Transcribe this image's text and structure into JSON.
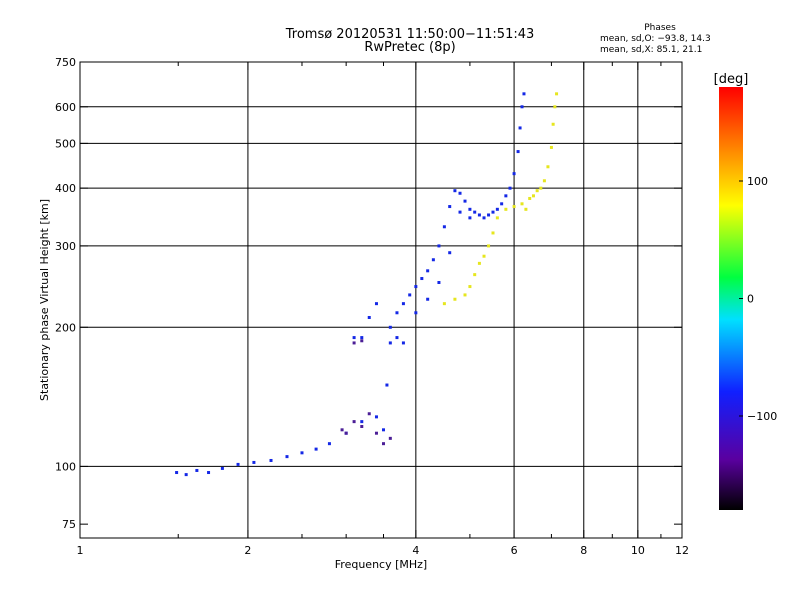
{
  "header": {
    "title": "Tromsø 20120531 11:50:00−11:51:43",
    "subtitle": "RwPretec (8p)"
  },
  "phases_box": {
    "title": "Phases",
    "line1": "mean, sd,O: −93.8, 14.3",
    "line2": "mean, sd,X:  85.1, 21.1"
  },
  "chart_data": {
    "type": "scatter",
    "xlabel": "Frequency [MHz]",
    "ylabel": "Stationary phase Virtual Height [km]",
    "xscale": "log",
    "yscale": "log",
    "xlim": [
      1,
      12
    ],
    "ylim": [
      70,
      750
    ],
    "x_ticks": [
      1,
      2,
      4,
      6,
      8,
      10,
      12
    ],
    "x_tick_labels": [
      "1",
      "2",
      "4",
      "6",
      "8",
      "10",
      "12"
    ],
    "x_minor_ticks": [
      1.5,
      2.5,
      3,
      3.5,
      5,
      7,
      9,
      11
    ],
    "y_ticks": [
      75,
      100,
      200,
      300,
      400,
      500,
      600,
      750
    ],
    "y_tick_labels": [
      "75",
      "100",
      "200",
      "300",
      "400",
      "500",
      "600",
      "750"
    ],
    "x_grid": [
      2,
      4,
      6,
      8,
      10,
      12
    ],
    "y_grid": [
      100,
      200,
      300,
      400,
      500,
      600
    ],
    "grid": true,
    "colorbar": {
      "label": "[deg]",
      "range": [
        -180,
        180
      ],
      "ticks": [
        -100,
        0,
        100
      ],
      "tick_labels": [
        "−100",
        "0",
        "100"
      ]
    },
    "series": [
      {
        "mode": "O",
        "color_hint": "blue",
        "points": [
          [
            1.49,
            97
          ],
          [
            1.55,
            96
          ],
          [
            1.62,
            98
          ],
          [
            1.7,
            97
          ],
          [
            1.8,
            99
          ],
          [
            1.92,
            101
          ],
          [
            2.05,
            102
          ],
          [
            2.2,
            103
          ],
          [
            2.35,
            105
          ],
          [
            2.5,
            107
          ],
          [
            2.65,
            109
          ],
          [
            2.8,
            112
          ],
          [
            3.0,
            118
          ],
          [
            3.2,
            125
          ],
          [
            3.4,
            128
          ],
          [
            3.5,
            120
          ],
          [
            3.55,
            150
          ],
          [
            3.6,
            200
          ],
          [
            3.7,
            215
          ],
          [
            3.8,
            225
          ],
          [
            3.9,
            235
          ],
          [
            4.0,
            245
          ],
          [
            4.1,
            255
          ],
          [
            4.2,
            265
          ],
          [
            4.3,
            280
          ],
          [
            4.4,
            300
          ],
          [
            4.5,
            330
          ],
          [
            4.6,
            365
          ],
          [
            4.7,
            395
          ],
          [
            4.8,
            390
          ],
          [
            4.9,
            375
          ],
          [
            5.0,
            360
          ],
          [
            5.1,
            355
          ],
          [
            5.2,
            350
          ],
          [
            5.3,
            345
          ],
          [
            5.4,
            350
          ],
          [
            5.5,
            355
          ],
          [
            5.6,
            360
          ],
          [
            5.7,
            370
          ],
          [
            5.8,
            385
          ],
          [
            5.9,
            400
          ],
          [
            6.0,
            430
          ],
          [
            6.1,
            480
          ],
          [
            6.15,
            540
          ],
          [
            6.2,
            600
          ],
          [
            6.25,
            640
          ],
          [
            3.1,
            190
          ],
          [
            3.2,
            190
          ],
          [
            3.3,
            210
          ],
          [
            3.4,
            225
          ],
          [
            3.6,
            185
          ],
          [
            3.7,
            190
          ],
          [
            3.8,
            185
          ],
          [
            4.0,
            215
          ],
          [
            4.2,
            230
          ],
          [
            4.4,
            250
          ],
          [
            4.6,
            290
          ],
          [
            4.8,
            355
          ],
          [
            5.0,
            345
          ]
        ]
      },
      {
        "mode": "X",
        "color_hint": "yellow",
        "points": [
          [
            4.5,
            225
          ],
          [
            4.7,
            230
          ],
          [
            4.9,
            235
          ],
          [
            5.0,
            245
          ],
          [
            5.1,
            260
          ],
          [
            5.2,
            275
          ],
          [
            5.3,
            285
          ],
          [
            5.4,
            300
          ],
          [
            5.5,
            320
          ],
          [
            5.6,
            345
          ],
          [
            5.8,
            360
          ],
          [
            6.0,
            365
          ],
          [
            6.2,
            370
          ],
          [
            6.4,
            380
          ],
          [
            6.6,
            395
          ],
          [
            6.8,
            415
          ],
          [
            6.9,
            445
          ],
          [
            7.0,
            490
          ],
          [
            7.05,
            550
          ],
          [
            7.1,
            600
          ],
          [
            7.15,
            640
          ],
          [
            6.3,
            360
          ],
          [
            6.5,
            385
          ],
          [
            6.7,
            400
          ]
        ]
      },
      {
        "mode": "O",
        "color_hint": "purple",
        "points": [
          [
            2.95,
            120
          ],
          [
            3.0,
            118
          ],
          [
            3.1,
            125
          ],
          [
            3.2,
            122
          ],
          [
            3.3,
            130
          ],
          [
            3.4,
            118
          ],
          [
            3.5,
            112
          ],
          [
            3.6,
            115
          ],
          [
            3.1,
            185
          ],
          [
            3.2,
            187
          ]
        ]
      }
    ]
  }
}
